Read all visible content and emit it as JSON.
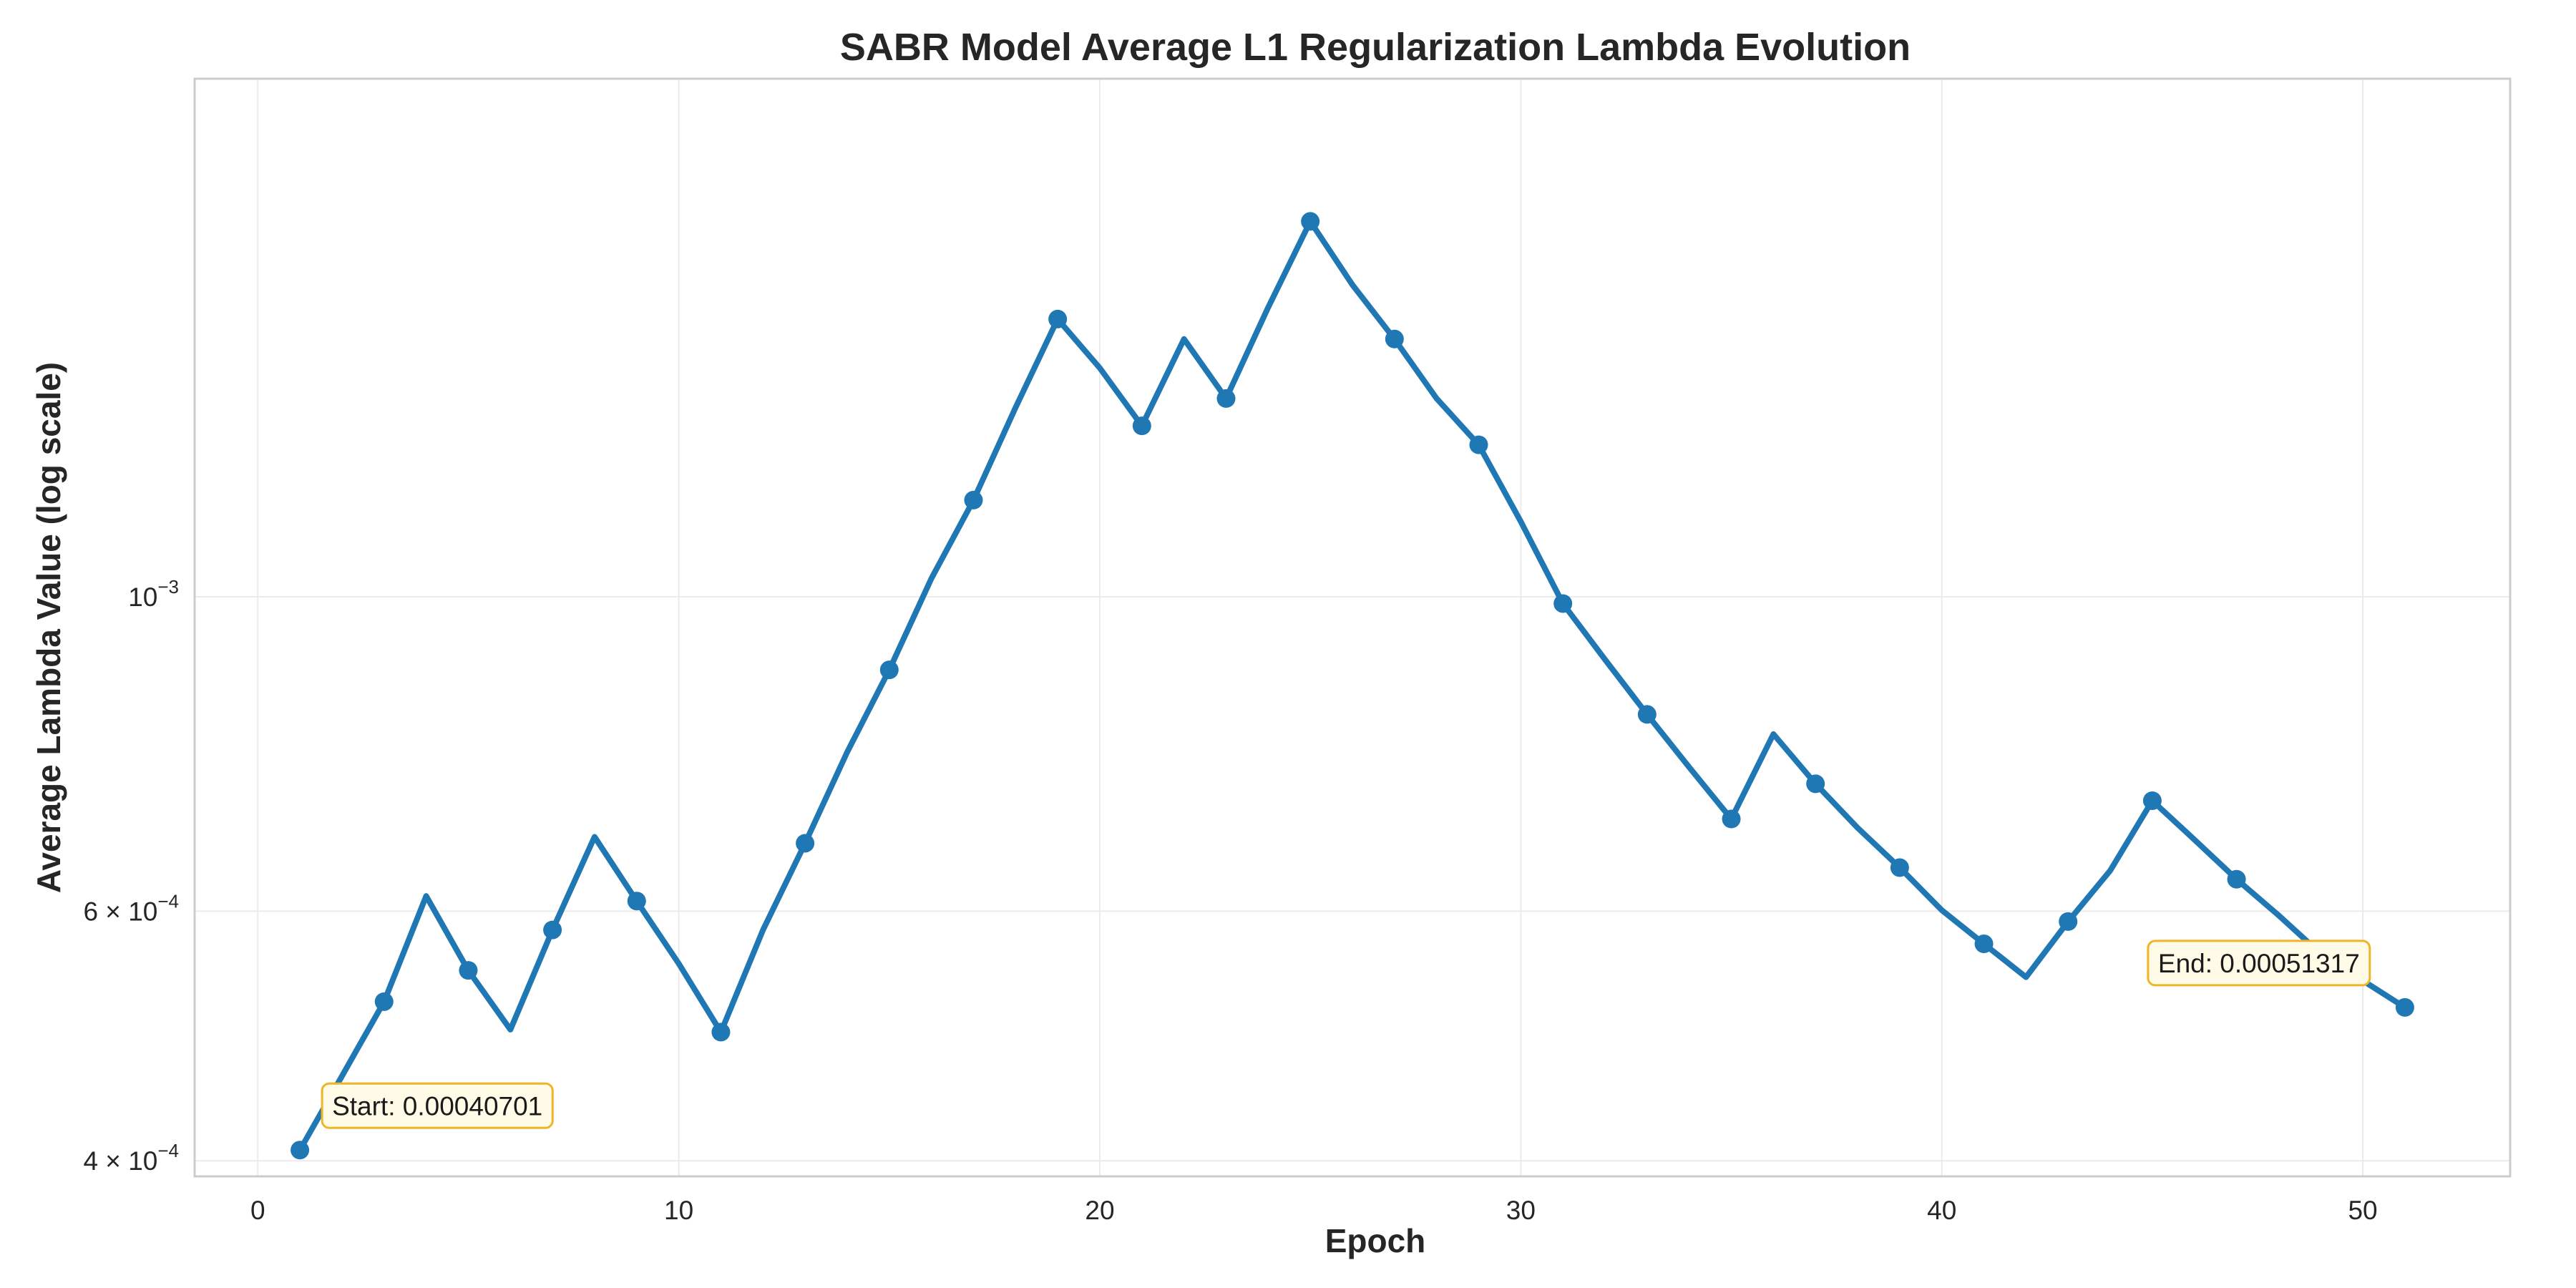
{
  "chart_data": {
    "type": "line",
    "title": "SABR Model Average L1 Regularization Lambda Evolution",
    "xlabel": "Epoch",
    "ylabel": "Average Lambda Value (log scale)",
    "yscale": "log",
    "xlim": [
      -1.5,
      53.5
    ],
    "ylim": [
      0.00039,
      0.00232
    ],
    "grid": true,
    "x_ticks": [
      0,
      10,
      20,
      30,
      40,
      50
    ],
    "y_ticks": [
      {
        "value": 0.001,
        "mantissa": "",
        "base": "10",
        "exponent": "−3"
      },
      {
        "value": 0.0006,
        "mantissa": "6 × ",
        "base": "10",
        "exponent": "−4"
      },
      {
        "value": 0.0004,
        "mantissa": "4 × ",
        "base": "10",
        "exponent": "−4"
      }
    ],
    "series": [
      {
        "color": "#1f77b4",
        "x": [
          1,
          2,
          3,
          4,
          5,
          6,
          7,
          8,
          9,
          10,
          11,
          12,
          13,
          14,
          15,
          16,
          17,
          18,
          19,
          20,
          21,
          22,
          23,
          24,
          25,
          26,
          27,
          28,
          29,
          30,
          31,
          32,
          33,
          34,
          35,
          36,
          37,
          38,
          39,
          40,
          41,
          42,
          43,
          44,
          45,
          46,
          47,
          48,
          49,
          50,
          51
        ],
        "y": [
          0.00040701,
          0.000459,
          0.000518,
          0.000615,
          0.000545,
          0.000495,
          0.000582,
          0.000677,
          0.00061,
          0.000551,
          0.000493,
          0.000582,
          0.00067,
          0.000777,
          0.000888,
          0.00103,
          0.00117,
          0.00136,
          0.00157,
          0.00145,
          0.00132,
          0.00152,
          0.00138,
          0.0016,
          0.00184,
          0.00166,
          0.00152,
          0.00138,
          0.00128,
          0.00113,
          0.000989,
          0.000903,
          0.000826,
          0.000758,
          0.000697,
          0.0008,
          0.000738,
          0.000687,
          0.000644,
          0.000601,
          0.000569,
          0.000539,
          0.00059,
          0.000641,
          0.000718,
          0.000674,
          0.000632,
          0.000596,
          0.00056,
          0.000536,
          0.00051317
        ],
        "marker_every": 2
      }
    ],
    "annotations": [
      {
        "text": "Start: 0.00040701",
        "x": 1,
        "y": 0.00040701,
        "box_color": "#fffbe6",
        "edge_color": "#f0b429"
      },
      {
        "text": "End: 0.00051317",
        "x": 51,
        "y": 0.00051317,
        "box_color": "#fffbe6",
        "edge_color": "#f0b429"
      }
    ]
  }
}
